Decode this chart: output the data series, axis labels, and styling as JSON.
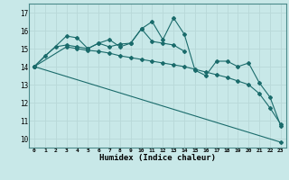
{
  "xlabel": "Humidex (Indice chaleur)",
  "ylabel": "",
  "background_color": "#c8e8e8",
  "grid_color": "#b8d8d8",
  "line_color": "#1a6b6b",
  "xlim": [
    -0.5,
    23.5
  ],
  "ylim": [
    9.5,
    17.5
  ],
  "yticks": [
    10,
    11,
    12,
    13,
    14,
    15,
    16,
    17
  ],
  "xticks": [
    0,
    1,
    2,
    3,
    4,
    5,
    6,
    7,
    8,
    9,
    10,
    11,
    12,
    13,
    14,
    15,
    16,
    17,
    18,
    19,
    20,
    21,
    22,
    23
  ],
  "series": [
    {
      "x": [
        0,
        1,
        2,
        3,
        4,
        5,
        6,
        7,
        8,
        9,
        10,
        11,
        12,
        13,
        14,
        15,
        16,
        17,
        18,
        19,
        20,
        21,
        22,
        23
      ],
      "y": [
        14.0,
        14.6,
        15.1,
        15.2,
        15.1,
        15.0,
        15.3,
        15.1,
        15.25,
        15.3,
        16.1,
        16.5,
        15.5,
        16.7,
        15.8,
        13.8,
        13.5,
        14.3,
        14.3,
        14.0,
        14.2,
        13.1,
        12.3,
        10.7
      ]
    },
    {
      "x": [
        0,
        3,
        4,
        5,
        6,
        7,
        8,
        9,
        10,
        11,
        12,
        13,
        14
      ],
      "y": [
        14.0,
        15.7,
        15.6,
        15.0,
        15.3,
        15.5,
        15.1,
        15.3,
        16.1,
        15.4,
        15.3,
        15.2,
        14.85
      ]
    },
    {
      "x": [
        0,
        3,
        4,
        5,
        6,
        7,
        8,
        9,
        10,
        11,
        12,
        13,
        14,
        15,
        16,
        17,
        18,
        19,
        20,
        21,
        22,
        23
      ],
      "y": [
        14.0,
        15.1,
        15.0,
        14.9,
        14.85,
        14.75,
        14.6,
        14.5,
        14.4,
        14.3,
        14.2,
        14.1,
        14.0,
        13.85,
        13.7,
        13.55,
        13.4,
        13.2,
        13.0,
        12.5,
        11.7,
        10.8
      ]
    },
    {
      "x": [
        0,
        23
      ],
      "y": [
        14.0,
        9.8
      ]
    }
  ]
}
